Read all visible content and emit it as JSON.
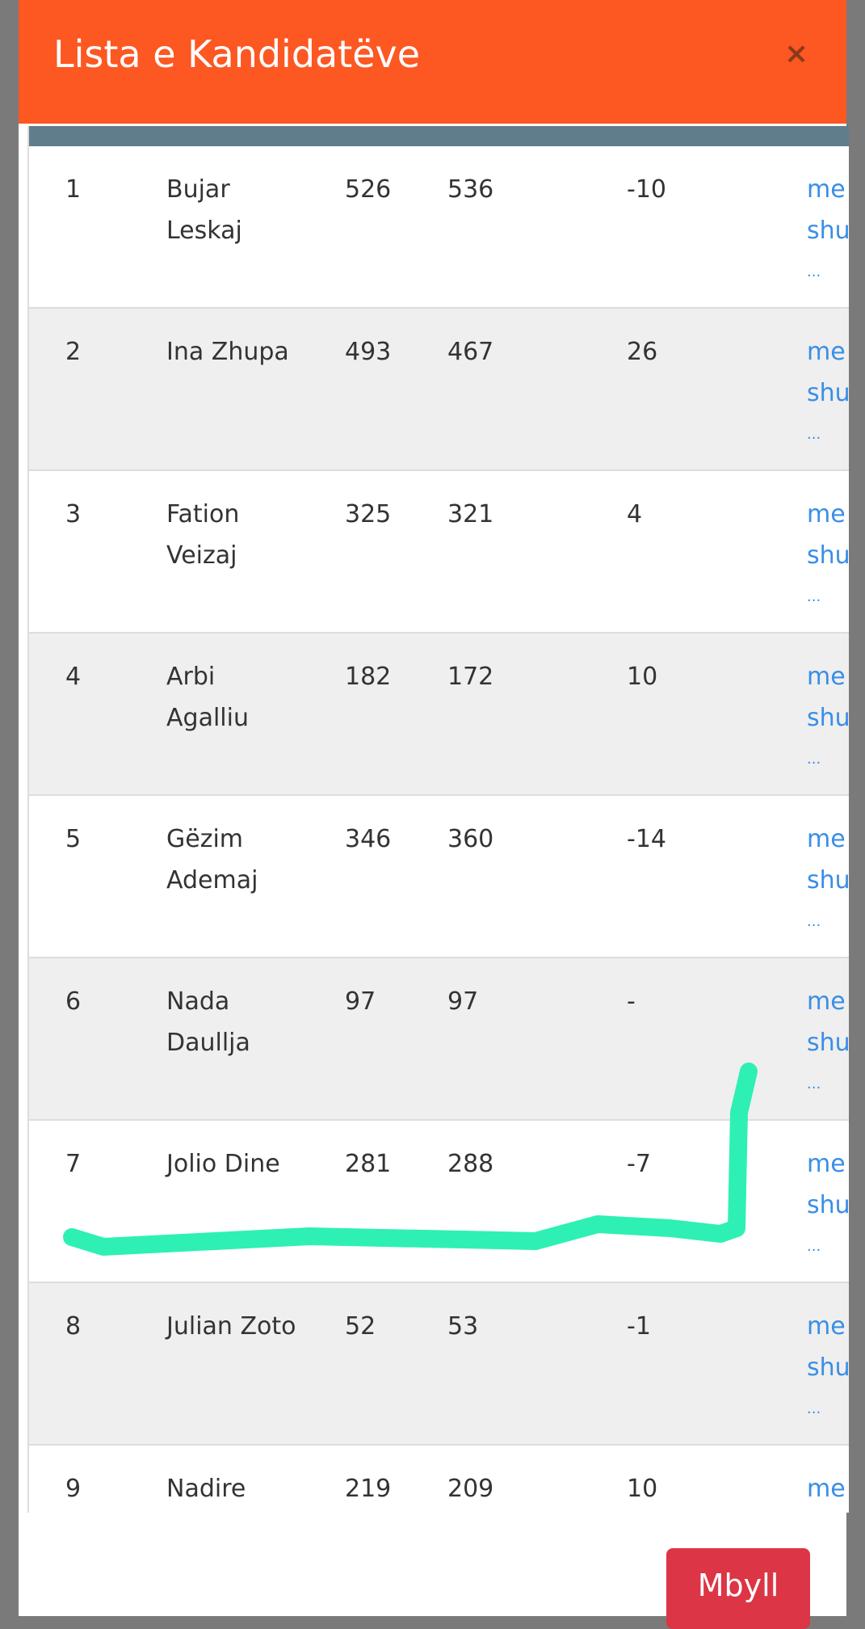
{
  "modal": {
    "title": "Lista e Kandidatëve",
    "close": "×",
    "button": "Mbyll"
  },
  "table": {
    "rows": [
      {
        "nr": "1",
        "name": [
          "Bujar",
          "Leskaj"
        ],
        "a": "526",
        "b": "536",
        "diff": "-10",
        "link": [
          "me",
          "shu",
          "..."
        ]
      },
      {
        "nr": "2",
        "name": [
          "Ina Zhupa"
        ],
        "a": "493",
        "b": "467",
        "diff": "26",
        "link": [
          "me",
          "shu",
          "..."
        ]
      },
      {
        "nr": "3",
        "name": [
          "Fation",
          "Veizaj"
        ],
        "a": "325",
        "b": "321",
        "diff": "4",
        "link": [
          "me",
          "shu",
          "..."
        ]
      },
      {
        "nr": "4",
        "name": [
          "Arbi",
          "Agalliu"
        ],
        "a": "182",
        "b": "172",
        "diff": "10",
        "link": [
          "me",
          "shu",
          "..."
        ]
      },
      {
        "nr": "5",
        "name": [
          "Gëzim",
          "Ademaj"
        ],
        "a": "346",
        "b": "360",
        "diff": "-14",
        "link": [
          "me",
          "shu",
          "..."
        ]
      },
      {
        "nr": "6",
        "name": [
          "Nada",
          "Daullja"
        ],
        "a": "97",
        "b": "97",
        "diff": "-",
        "link": [
          "me",
          "shu",
          "..."
        ]
      },
      {
        "nr": "7",
        "name": [
          "Jolio Dine"
        ],
        "a": "281",
        "b": "288",
        "diff": "-7",
        "link": [
          "me",
          "shu",
          "..."
        ]
      },
      {
        "nr": "8",
        "name": [
          "Julian Zoto"
        ],
        "a": "52",
        "b": "53",
        "diff": "-1",
        "link": [
          "me",
          "shu",
          "..."
        ]
      },
      {
        "nr": "9",
        "name": [
          "Nadire"
        ],
        "a": "219",
        "b": "209",
        "diff": "10",
        "link": [
          "me"
        ]
      }
    ]
  }
}
